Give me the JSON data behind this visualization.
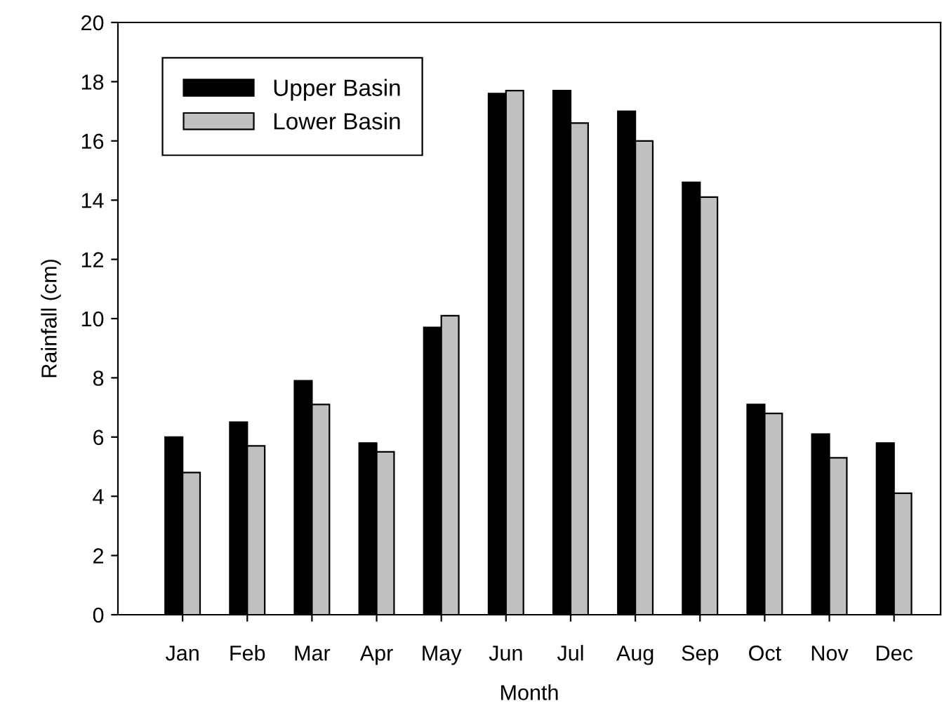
{
  "chart_data": {
    "type": "bar",
    "xlabel": "Month",
    "ylabel": "Rainfall (cm)",
    "categories": [
      "Jan",
      "Feb",
      "Mar",
      "Apr",
      "May",
      "Jun",
      "Jul",
      "Aug",
      "Sep",
      "Oct",
      "Nov",
      "Dec"
    ],
    "series": [
      {
        "name": "Upper Basin",
        "color": "#000000",
        "values": [
          6.0,
          6.5,
          7.9,
          5.8,
          9.7,
          17.6,
          17.7,
          17.0,
          14.6,
          7.1,
          6.1,
          5.8
        ]
      },
      {
        "name": "Lower Basin",
        "color": "#c0c0c0",
        "values": [
          4.8,
          5.7,
          7.1,
          5.5,
          10.1,
          17.7,
          16.6,
          16.0,
          14.1,
          6.8,
          5.3,
          4.1
        ]
      }
    ],
    "ylim": [
      0,
      20
    ],
    "yticks": [
      0,
      2,
      4,
      6,
      8,
      10,
      12,
      14,
      16,
      18,
      20
    ],
    "grid": false,
    "legend": "top left"
  }
}
